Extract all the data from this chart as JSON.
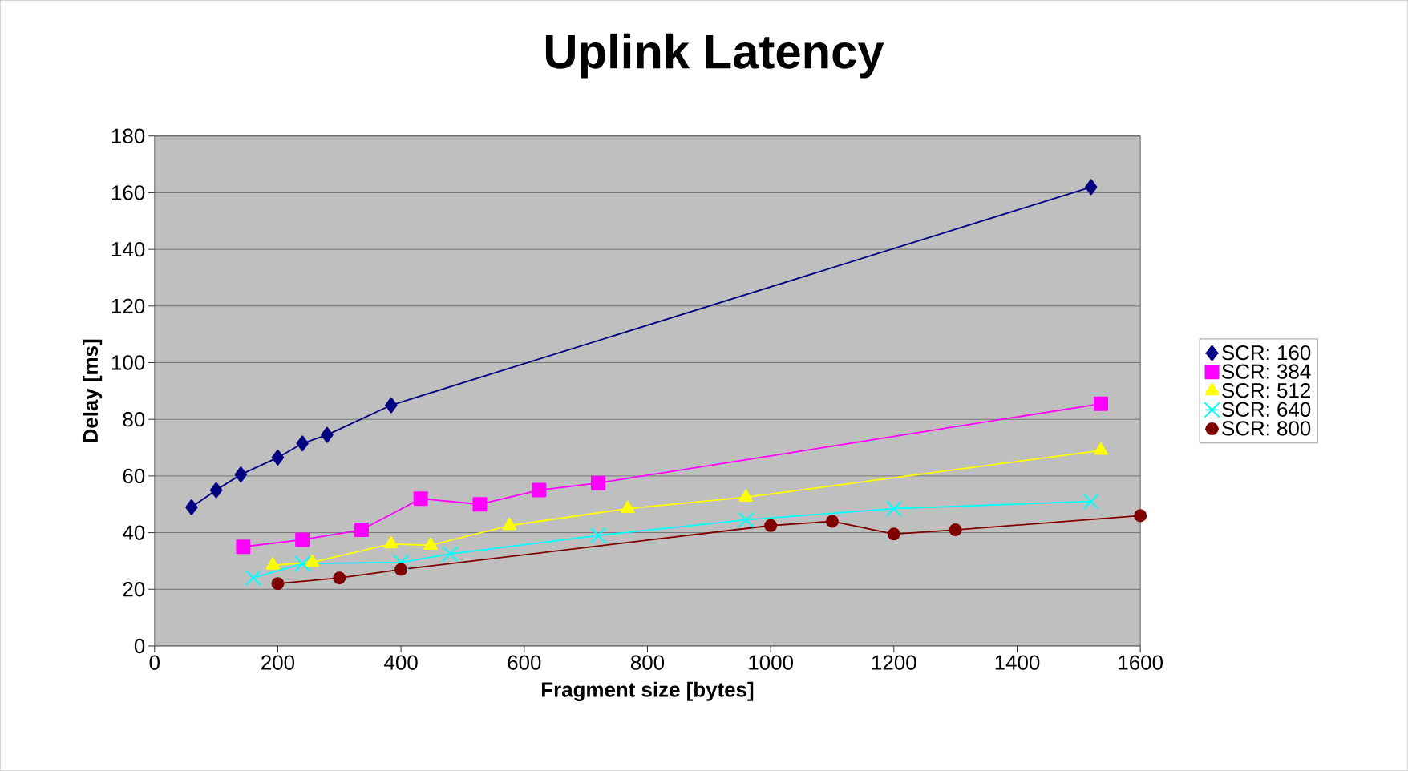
{
  "chart_data": {
    "type": "line",
    "title": "Uplink Latency",
    "xlabel": "Fragment size  [bytes]",
    "ylabel": "Delay [ms]",
    "xlim": [
      0,
      1600
    ],
    "xticks": [
      0,
      200,
      400,
      600,
      800,
      1000,
      1200,
      1400,
      1600
    ],
    "ylim": [
      0,
      180
    ],
    "yticks": [
      0,
      20,
      40,
      60,
      80,
      100,
      120,
      140,
      160,
      180
    ],
    "grid": "y",
    "legend": "right",
    "series": [
      {
        "name": "SCR: 160",
        "color": "#000080",
        "marker": "diamond",
        "x": [
          60,
          100,
          140,
          200,
          240,
          280,
          384,
          1520
        ],
        "values": [
          49,
          55,
          60.5,
          66.5,
          71.5,
          74.5,
          85,
          162
        ]
      },
      {
        "name": "SCR: 384",
        "color": "#ff00ff",
        "marker": "square",
        "x": [
          144,
          240,
          336,
          432,
          528,
          624,
          720,
          1536
        ],
        "values": [
          35,
          37.5,
          41,
          52,
          50,
          55,
          57.5,
          85.5
        ]
      },
      {
        "name": "SCR: 512",
        "color": "#ffff00",
        "marker": "triangle",
        "x": [
          192,
          256,
          384,
          448,
          576,
          768,
          960,
          1536
        ],
        "values": [
          28.5,
          29.5,
          36,
          35.5,
          42.5,
          48.5,
          52.5,
          69
        ]
      },
      {
        "name": "SCR: 640",
        "color": "#00ffff",
        "marker": "cross",
        "x": [
          160,
          240,
          400,
          480,
          720,
          960,
          1200,
          1520
        ],
        "values": [
          24,
          29,
          29.5,
          32.5,
          39,
          44.5,
          48.5,
          51
        ]
      },
      {
        "name": "SCR: 800",
        "color": "#800000",
        "marker": "circle",
        "x": [
          200,
          300,
          400,
          1000,
          1100,
          1200,
          1300,
          1600
        ],
        "values": [
          22,
          24,
          27,
          42.5,
          44,
          39.5,
          41,
          46
        ]
      }
    ]
  }
}
